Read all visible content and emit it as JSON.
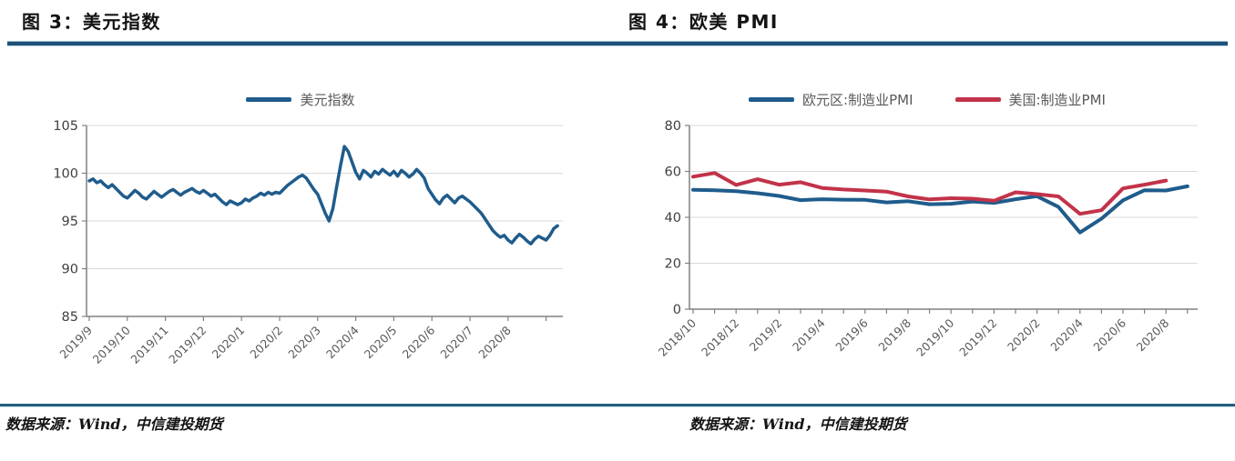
{
  "page": {
    "titles": [
      "图 3：美元指数",
      "图 4：欧美 PMI"
    ],
    "source_note": "数据来源：Wind，中信建投期货"
  },
  "colors": {
    "blue_line": "#1F5C8C",
    "red_line": "#C23349",
    "rule": "#1F5077",
    "bottom_rule": "#235E7D",
    "gridline": "#D9D9D9",
    "axis": "#808080",
    "tick_label": "#595959",
    "y_label": "#404040"
  },
  "chart_data": [
    {
      "type": "line",
      "title": "图 3：美元指数",
      "legend_position": "top",
      "grid": true,
      "ylim": [
        85,
        105
      ],
      "y_ticks": [
        85,
        90,
        95,
        100,
        105
      ],
      "x_tick_labels": [
        "2019/9",
        "2019/10",
        "2019/11",
        "2019/12",
        "2020/1",
        "2020/2",
        "2020/3",
        "2020/4",
        "2020/5",
        "2020/6",
        "2020/7",
        "2020/8"
      ],
      "points_per_month": 10,
      "series": [
        {
          "name": "美元指数",
          "color": "#1F5C8C",
          "values": [
            99.2,
            99.4,
            99.0,
            99.2,
            98.8,
            98.5,
            98.8,
            98.4,
            98.0,
            97.6,
            97.4,
            97.8,
            98.2,
            97.9,
            97.5,
            97.3,
            97.7,
            98.1,
            97.8,
            97.5,
            97.8,
            98.1,
            98.3,
            98.0,
            97.7,
            98.0,
            98.2,
            98.4,
            98.1,
            97.9,
            98.2,
            97.9,
            97.6,
            97.8,
            97.4,
            97.0,
            96.7,
            97.1,
            96.9,
            96.7,
            96.9,
            97.3,
            97.1,
            97.4,
            97.6,
            97.9,
            97.7,
            98.0,
            97.8,
            98.0,
            97.9,
            98.3,
            98.7,
            99.0,
            99.3,
            99.6,
            99.8,
            99.5,
            98.9,
            98.3,
            97.8,
            96.8,
            95.8,
            95.0,
            96.3,
            98.6,
            100.8,
            102.8,
            102.3,
            101.2,
            100.1,
            99.4,
            100.3,
            100.0,
            99.6,
            100.2,
            99.9,
            100.4,
            100.1,
            99.8,
            100.2,
            99.7,
            100.3,
            100.0,
            99.6,
            99.9,
            100.4,
            100.0,
            99.5,
            98.4,
            97.8,
            97.2,
            96.8,
            97.4,
            97.7,
            97.3,
            96.9,
            97.4,
            97.6,
            97.3,
            97.0,
            96.6,
            96.2,
            95.8,
            95.2,
            94.6,
            94.0,
            93.6,
            93.3,
            93.5,
            93.0,
            92.7,
            93.2,
            93.6,
            93.3,
            92.9,
            92.6,
            93.1,
            93.4,
            93.2,
            93.0,
            93.5,
            94.2,
            94.5
          ]
        }
      ]
    },
    {
      "type": "line",
      "title": "图 4：欧美 PMI",
      "legend_position": "top",
      "grid": true,
      "ylim": [
        0,
        80
      ],
      "y_ticks": [
        0,
        20,
        40,
        60,
        80
      ],
      "categories": [
        "2018/10",
        "2018/11",
        "2018/12",
        "2019/1",
        "2019/2",
        "2019/3",
        "2019/4",
        "2019/5",
        "2019/6",
        "2019/7",
        "2019/8",
        "2019/9",
        "2019/10",
        "2019/11",
        "2019/12",
        "2020/1",
        "2020/2",
        "2020/3",
        "2020/4",
        "2020/5",
        "2020/6",
        "2020/7",
        "2020/8",
        "2020/9"
      ],
      "x_tick_labels": [
        "2018/10",
        "2018/12",
        "2019/2",
        "2019/4",
        "2019/6",
        "2019/8",
        "2019/10",
        "2019/12",
        "2020/2",
        "2020/4",
        "2020/6",
        "2020/8"
      ],
      "series": [
        {
          "name": "欧元区:制造业PMI",
          "color": "#1F5C8C",
          "values": [
            52.0,
            51.8,
            51.4,
            50.5,
            49.3,
            47.5,
            47.9,
            47.7,
            47.6,
            46.5,
            47.0,
            45.7,
            45.9,
            46.9,
            46.3,
            47.9,
            49.2,
            44.5,
            33.4,
            39.4,
            47.4,
            51.8,
            51.7,
            53.5
          ]
        },
        {
          "name": "美国:制造业PMI",
          "color": "#C23349",
          "values": [
            57.7,
            59.3,
            54.1,
            56.6,
            54.2,
            55.3,
            52.8,
            52.1,
            51.7,
            51.2,
            49.1,
            47.8,
            48.3,
            48.1,
            47.2,
            50.9,
            50.1,
            49.1,
            41.5,
            43.1,
            52.6,
            54.2,
            56.0
          ]
        }
      ]
    }
  ]
}
